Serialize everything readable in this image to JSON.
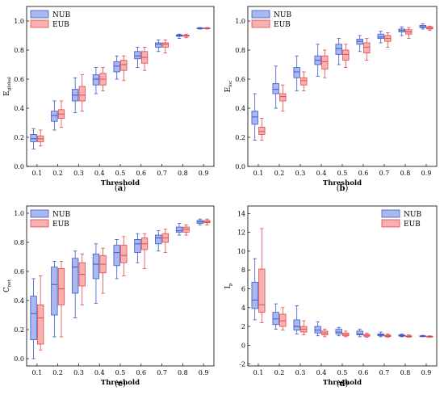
{
  "figure": {
    "colors": {
      "nub_fill": "#a9b8ef",
      "nub_edge": "#3f56c8",
      "eub_fill": "#f7b1b1",
      "eub_edge": "#e0474c"
    }
  },
  "chart_data": [
    {
      "type": "box",
      "panel_label_prefix": "(",
      "panel_letter": "a",
      "panel_label_suffix": ")",
      "ylabel_main": "E",
      "ylabel_sub": "global",
      "xlabel": "Threshold",
      "ylim": [
        0.0,
        1.1
      ],
      "yticks": [
        "0.0",
        "0.2",
        "0.4",
        "0.6",
        "0.8",
        "1.0"
      ],
      "ytick_values": [
        0.0,
        0.2,
        0.4,
        0.6,
        0.8,
        1.0
      ],
      "legend": {
        "position": "top-left",
        "entries": [
          "NUB",
          "EUB"
        ]
      },
      "categories": [
        "0.1",
        "0.2",
        "0.3",
        "0.4",
        "0.5",
        "0.6",
        "0.7",
        "0.8",
        "0.9"
      ],
      "series": [
        {
          "name": "NUB",
          "boxes": [
            {
              "min": 0.12,
              "q1": 0.17,
              "median": 0.19,
              "q3": 0.22,
              "max": 0.26
            },
            {
              "min": 0.25,
              "q1": 0.31,
              "median": 0.35,
              "q3": 0.38,
              "max": 0.45
            },
            {
              "min": 0.37,
              "q1": 0.45,
              "median": 0.49,
              "q3": 0.53,
              "max": 0.61
            },
            {
              "min": 0.5,
              "q1": 0.56,
              "median": 0.6,
              "q3": 0.63,
              "max": 0.68
            },
            {
              "min": 0.6,
              "q1": 0.65,
              "median": 0.69,
              "q3": 0.72,
              "max": 0.76
            },
            {
              "min": 0.68,
              "q1": 0.74,
              "median": 0.76,
              "q3": 0.79,
              "max": 0.82
            },
            {
              "min": 0.79,
              "q1": 0.82,
              "median": 0.84,
              "q3": 0.85,
              "max": 0.87
            },
            {
              "min": 0.88,
              "q1": 0.895,
              "median": 0.9,
              "q3": 0.905,
              "max": 0.91
            },
            {
              "min": 0.945,
              "q1": 0.948,
              "median": 0.95,
              "q3": 0.952,
              "max": 0.955
            }
          ]
        },
        {
          "name": "EUB",
          "boxes": [
            {
              "min": 0.14,
              "q1": 0.17,
              "median": 0.19,
              "q3": 0.21,
              "max": 0.25
            },
            {
              "min": 0.27,
              "q1": 0.33,
              "median": 0.36,
              "q3": 0.39,
              "max": 0.45
            },
            {
              "min": 0.38,
              "q1": 0.45,
              "median": 0.49,
              "q3": 0.55,
              "max": 0.63
            },
            {
              "min": 0.52,
              "q1": 0.56,
              "median": 0.6,
              "q3": 0.64,
              "max": 0.68
            },
            {
              "min": 0.59,
              "q1": 0.66,
              "median": 0.7,
              "q3": 0.73,
              "max": 0.76
            },
            {
              "min": 0.66,
              "q1": 0.71,
              "median": 0.75,
              "q3": 0.79,
              "max": 0.82
            },
            {
              "min": 0.78,
              "q1": 0.82,
              "median": 0.84,
              "q3": 0.85,
              "max": 0.87
            },
            {
              "min": 0.885,
              "q1": 0.895,
              "median": 0.9,
              "q3": 0.902,
              "max": 0.91
            },
            {
              "min": 0.945,
              "q1": 0.948,
              "median": 0.95,
              "q3": 0.952,
              "max": 0.955
            }
          ]
        }
      ]
    },
    {
      "type": "box",
      "panel_label_prefix": "(",
      "panel_letter": "b",
      "panel_label_suffix": ")",
      "ylabel_main": "E",
      "ylabel_sub": "loc",
      "xlabel": "Threshold",
      "ylim": [
        0.0,
        1.1
      ],
      "yticks": [
        "0.0",
        "0.2",
        "0.4",
        "0.6",
        "0.8",
        "1.0"
      ],
      "ytick_values": [
        0.0,
        0.2,
        0.4,
        0.6,
        0.8,
        1.0
      ],
      "legend": {
        "position": "top-left",
        "entries": [
          "NUB",
          "EUB"
        ]
      },
      "categories": [
        "0.1",
        "0.2",
        "0.3",
        "0.4",
        "0.5",
        "0.6",
        "0.7",
        "0.8",
        "0.9"
      ],
      "series": [
        {
          "name": "NUB",
          "boxes": [
            {
              "min": 0.18,
              "q1": 0.29,
              "median": 0.34,
              "q3": 0.38,
              "max": 0.5
            },
            {
              "min": 0.4,
              "q1": 0.5,
              "median": 0.53,
              "q3": 0.57,
              "max": 0.69
            },
            {
              "min": 0.52,
              "q1": 0.61,
              "median": 0.65,
              "q3": 0.68,
              "max": 0.76
            },
            {
              "min": 0.62,
              "q1": 0.7,
              "median": 0.73,
              "q3": 0.76,
              "max": 0.84
            },
            {
              "min": 0.7,
              "q1": 0.77,
              "median": 0.81,
              "q3": 0.84,
              "max": 0.88
            },
            {
              "min": 0.79,
              "q1": 0.84,
              "median": 0.86,
              "q3": 0.875,
              "max": 0.9
            },
            {
              "min": 0.85,
              "q1": 0.88,
              "median": 0.89,
              "q3": 0.91,
              "max": 0.93
            },
            {
              "min": 0.9,
              "q1": 0.925,
              "median": 0.935,
              "q3": 0.945,
              "max": 0.96
            },
            {
              "min": 0.945,
              "q1": 0.955,
              "median": 0.96,
              "q3": 0.97,
              "max": 0.98
            }
          ]
        },
        {
          "name": "EUB",
          "boxes": [
            {
              "min": 0.18,
              "q1": 0.22,
              "median": 0.24,
              "q3": 0.27,
              "max": 0.33
            },
            {
              "min": 0.38,
              "q1": 0.45,
              "median": 0.48,
              "q3": 0.5,
              "max": 0.56
            },
            {
              "min": 0.52,
              "q1": 0.56,
              "median": 0.59,
              "q3": 0.61,
              "max": 0.65
            },
            {
              "min": 0.61,
              "q1": 0.67,
              "median": 0.72,
              "q3": 0.76,
              "max": 0.8
            },
            {
              "min": 0.68,
              "q1": 0.73,
              "median": 0.77,
              "q3": 0.8,
              "max": 0.84
            },
            {
              "min": 0.73,
              "q1": 0.78,
              "median": 0.82,
              "q3": 0.85,
              "max": 0.88
            },
            {
              "min": 0.82,
              "q1": 0.86,
              "median": 0.88,
              "q3": 0.9,
              "max": 0.92
            },
            {
              "min": 0.88,
              "q1": 0.91,
              "median": 0.925,
              "q3": 0.94,
              "max": 0.955
            },
            {
              "min": 0.935,
              "q1": 0.945,
              "median": 0.95,
              "q3": 0.96,
              "max": 0.965
            }
          ]
        }
      ]
    },
    {
      "type": "box",
      "panel_label_prefix": "(",
      "panel_letter": "c",
      "panel_label_suffix": ")",
      "ylabel_main": "C",
      "ylabel_sub": "net",
      "xlabel": "Threshold",
      "ylim": [
        -0.05,
        1.05
      ],
      "yticks": [
        "0.0",
        "0.2",
        "0.4",
        "0.6",
        "0.8",
        "1.0"
      ],
      "ytick_values": [
        0.0,
        0.2,
        0.4,
        0.6,
        0.8,
        1.0
      ],
      "legend": {
        "position": "top-left",
        "entries": [
          "NUB",
          "EUB"
        ]
      },
      "categories": [
        "0.1",
        "0.2",
        "0.3",
        "0.4",
        "0.5",
        "0.6",
        "0.7",
        "0.8",
        "0.9"
      ],
      "series": [
        {
          "name": "NUB",
          "boxes": [
            {
              "min": 0.0,
              "q1": 0.13,
              "median": 0.31,
              "q3": 0.43,
              "max": 0.55
            },
            {
              "min": 0.15,
              "q1": 0.3,
              "median": 0.51,
              "q3": 0.63,
              "max": 0.67
            },
            {
              "min": 0.28,
              "q1": 0.45,
              "median": 0.63,
              "q3": 0.69,
              "max": 0.74
            },
            {
              "min": 0.38,
              "q1": 0.55,
              "median": 0.65,
              "q3": 0.72,
              "max": 0.79
            },
            {
              "min": 0.55,
              "q1": 0.64,
              "median": 0.73,
              "q3": 0.78,
              "max": 0.82
            },
            {
              "min": 0.66,
              "q1": 0.73,
              "median": 0.79,
              "q3": 0.82,
              "max": 0.86
            },
            {
              "min": 0.74,
              "q1": 0.79,
              "median": 0.83,
              "q3": 0.85,
              "max": 0.88
            },
            {
              "min": 0.85,
              "q1": 0.87,
              "median": 0.88,
              "q3": 0.905,
              "max": 0.93
            },
            {
              "min": 0.92,
              "q1": 0.93,
              "median": 0.94,
              "q3": 0.95,
              "max": 0.96
            }
          ]
        },
        {
          "name": "EUB",
          "boxes": [
            {
              "min": 0.06,
              "q1": 0.1,
              "median": 0.28,
              "q3": 0.37,
              "max": 0.57
            },
            {
              "min": 0.15,
              "q1": 0.37,
              "median": 0.48,
              "q3": 0.62,
              "max": 0.67
            },
            {
              "min": 0.37,
              "q1": 0.5,
              "median": 0.58,
              "q3": 0.66,
              "max": 0.72
            },
            {
              "min": 0.45,
              "q1": 0.59,
              "median": 0.65,
              "q3": 0.71,
              "max": 0.76
            },
            {
              "min": 0.57,
              "q1": 0.66,
              "median": 0.71,
              "q3": 0.78,
              "max": 0.84
            },
            {
              "min": 0.62,
              "q1": 0.75,
              "median": 0.79,
              "q3": 0.83,
              "max": 0.86
            },
            {
              "min": 0.73,
              "q1": 0.8,
              "median": 0.83,
              "q3": 0.86,
              "max": 0.89
            },
            {
              "min": 0.85,
              "q1": 0.87,
              "median": 0.89,
              "q3": 0.905,
              "max": 0.92
            },
            {
              "min": 0.92,
              "q1": 0.935,
              "median": 0.94,
              "q3": 0.95,
              "max": 0.96
            }
          ]
        }
      ]
    },
    {
      "type": "box",
      "panel_label_prefix": "(",
      "panel_letter": "d",
      "panel_label_suffix": ")",
      "ylabel_main": "I",
      "ylabel_sub": "p",
      "xlabel": "Threshold",
      "ylim": [
        -2.2,
        14.8
      ],
      "yticks": [
        "-2",
        "0",
        "2",
        "4",
        "6",
        "8",
        "10",
        "12",
        "14"
      ],
      "ytick_values": [
        -2,
        0,
        2,
        4,
        6,
        8,
        10,
        12,
        14
      ],
      "legend": {
        "position": "top-right",
        "entries": [
          "NUB",
          "EUB"
        ]
      },
      "categories": [
        "0.1",
        "0.2",
        "0.3",
        "0.4",
        "0.5",
        "0.6",
        "0.7",
        "0.8",
        "0.9"
      ],
      "series": [
        {
          "name": "NUB",
          "boxes": [
            {
              "min": 2.7,
              "q1": 3.9,
              "median": 4.8,
              "q3": 6.7,
              "max": 9.2
            },
            {
              "min": 1.7,
              "q1": 2.2,
              "median": 2.8,
              "q3": 3.5,
              "max": 4.4
            },
            {
              "min": 1.2,
              "q1": 1.6,
              "median": 2.0,
              "q3": 2.7,
              "max": 4.2
            },
            {
              "min": 1.0,
              "q1": 1.3,
              "median": 1.6,
              "q3": 2.0,
              "max": 2.5
            },
            {
              "min": 1.0,
              "q1": 1.2,
              "median": 1.4,
              "q3": 1.7,
              "max": 1.9
            },
            {
              "min": 0.9,
              "q1": 1.1,
              "median": 1.2,
              "q3": 1.5,
              "max": 1.7
            },
            {
              "min": 0.9,
              "q1": 1.0,
              "median": 1.1,
              "q3": 1.2,
              "max": 1.4
            },
            {
              "min": 0.9,
              "q1": 0.97,
              "median": 1.02,
              "q3": 1.1,
              "max": 1.2
            },
            {
              "min": 0.9,
              "q1": 0.94,
              "median": 0.97,
              "q3": 1.0,
              "max": 1.05
            }
          ]
        },
        {
          "name": "EUB",
          "boxes": [
            {
              "min": 2.4,
              "q1": 3.5,
              "median": 4.3,
              "q3": 8.1,
              "max": 12.4
            },
            {
              "min": 1.6,
              "q1": 2.0,
              "median": 2.6,
              "q3": 3.3,
              "max": 4.0
            },
            {
              "min": 1.1,
              "q1": 1.4,
              "median": 1.7,
              "q3": 2.0,
              "max": 2.6
            },
            {
              "min": 0.9,
              "q1": 1.1,
              "median": 1.3,
              "q3": 1.5,
              "max": 1.7
            },
            {
              "min": 0.9,
              "q1": 1.0,
              "median": 1.15,
              "q3": 1.3,
              "max": 1.5
            },
            {
              "min": 0.85,
              "q1": 0.95,
              "median": 1.05,
              "q3": 1.15,
              "max": 1.3
            },
            {
              "min": 0.85,
              "q1": 0.92,
              "median": 1.0,
              "q3": 1.08,
              "max": 1.2
            },
            {
              "min": 0.85,
              "q1": 0.9,
              "median": 0.95,
              "q3": 1.0,
              "max": 1.1
            },
            {
              "min": 0.85,
              "q1": 0.88,
              "median": 0.92,
              "q3": 0.96,
              "max": 1.0
            }
          ]
        }
      ]
    }
  ]
}
